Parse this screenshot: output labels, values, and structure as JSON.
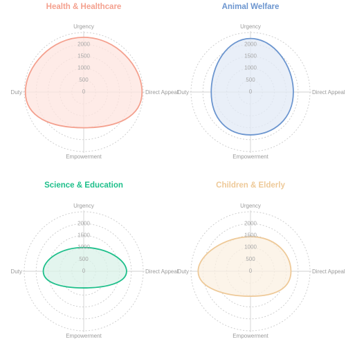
{
  "chart_data": [
    {
      "type": "radar",
      "title": "Health & Healthcare",
      "color": "#f4a08e",
      "fill": "#fde4df",
      "axes": [
        "Urgency",
        "Direct Appeal",
        "Empowerment",
        "Duty"
      ],
      "ticks": [
        0,
        500,
        1000,
        1500,
        2000
      ],
      "max": 2500,
      "grid": true,
      "values": [
        2300,
        2450,
        1500,
        2450
      ]
    },
    {
      "type": "radar",
      "title": "Animal Welfare",
      "color": "#6b95cf",
      "fill": "#e2e9f6",
      "axes": [
        "Urgency",
        "Direct Appeal",
        "Empowerment",
        "Duty"
      ],
      "ticks": [
        0,
        500,
        1000,
        1500,
        2000
      ],
      "max": 2500,
      "grid": true,
      "values": [
        2250,
        1800,
        1800,
        1650
      ]
    },
    {
      "type": "radar",
      "title": "Science & Education",
      "color": "#1dbf8a",
      "fill": "#d9f2e8",
      "axes": [
        "Urgency",
        "Direct Appeal",
        "Empowerment",
        "Duty"
      ],
      "ticks": [
        0,
        500,
        1000,
        1500,
        2000
      ],
      "max": 2500,
      "grid": true,
      "values": [
        1000,
        1800,
        700,
        1700
      ]
    },
    {
      "type": "radar",
      "title": "Children & Elderly",
      "color": "#eec998",
      "fill": "#fbf0e2",
      "axes": [
        "Urgency",
        "Direct Appeal",
        "Empowerment",
        "Duty"
      ],
      "ticks": [
        0,
        500,
        1000,
        1500,
        2000
      ],
      "max": 2500,
      "grid": true,
      "values": [
        1450,
        1700,
        1050,
        2200
      ]
    }
  ]
}
